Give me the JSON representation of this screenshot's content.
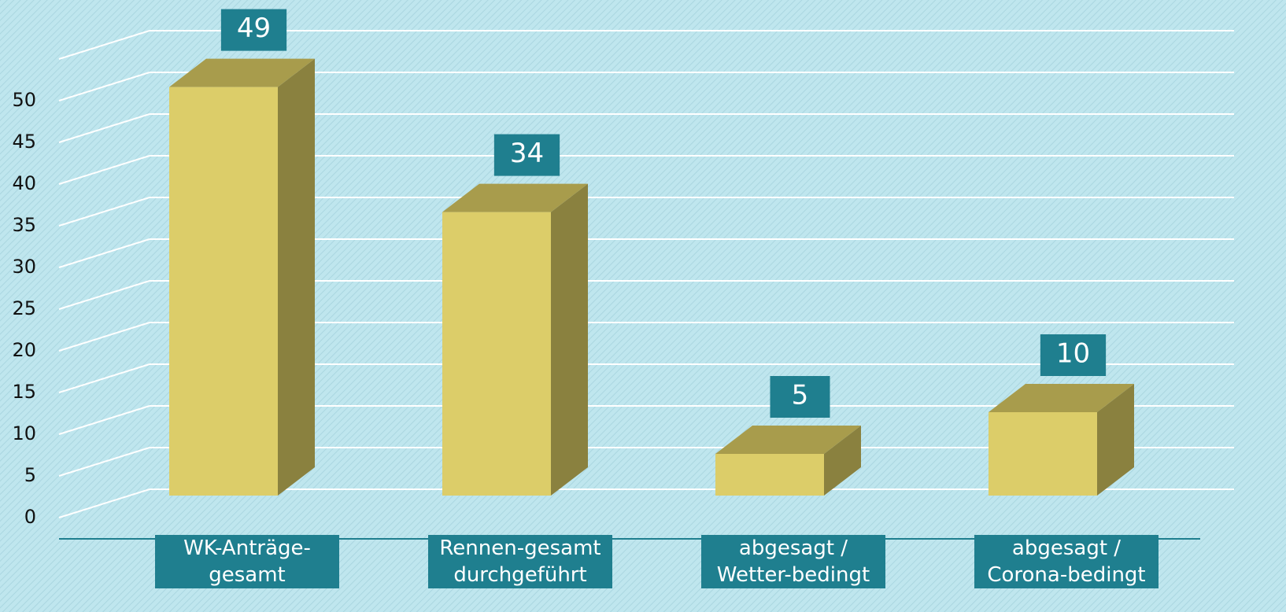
{
  "chart_data": {
    "type": "bar3d",
    "categories": [
      "WK-Anträge-gesamt",
      "Rennen-gesamt durchgeführt",
      "abgesagt / Wetter-bedingt",
      "abgesagt / Corona-bedingt"
    ],
    "values": [
      49,
      34,
      5,
      10
    ],
    "color": "#dccd69",
    "ylim": [
      0,
      55
    ],
    "yticks": [
      0,
      5,
      10,
      15,
      20,
      25,
      30,
      35,
      40,
      45,
      50
    ],
    "grid": true
  }
}
